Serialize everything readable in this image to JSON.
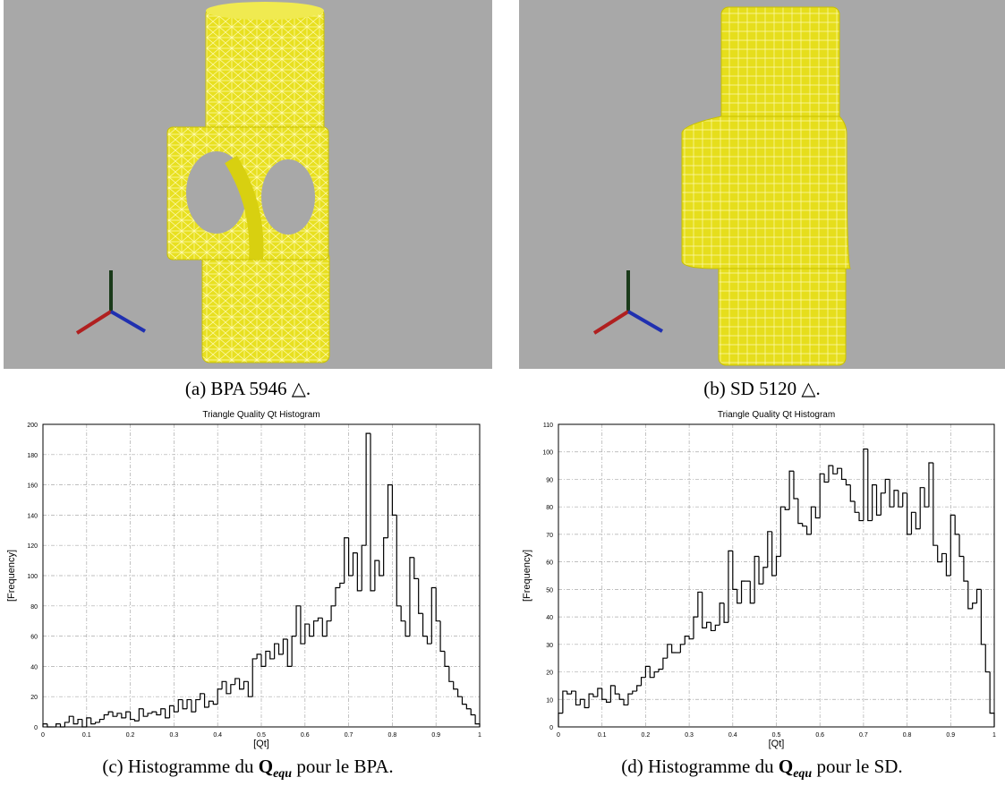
{
  "panels": [
    {
      "caption": "(a) BPA 5946 △."
    },
    {
      "caption": "(b) SD 5120 △."
    }
  ],
  "chart_data": [
    {
      "type": "histogram",
      "title": "Triangle Quality Qt Histogram",
      "xlabel": "[Qt]",
      "ylabel": "[Frequency]",
      "color": "#000000",
      "grid": true,
      "caption": {
        "label": "(c) Histogramme du",
        "symbol": "Q",
        "subscript": "equ",
        "suffix": "pour le BPA."
      },
      "bins": [
        0,
        0.01,
        0.02,
        0.03,
        0.04,
        0.05,
        0.06,
        0.07,
        0.08,
        0.09,
        0.1,
        0.11,
        0.12,
        0.13,
        0.14,
        0.15,
        0.16,
        0.17,
        0.18,
        0.19,
        0.2,
        0.21,
        0.22,
        0.23,
        0.24,
        0.25,
        0.26,
        0.27,
        0.28,
        0.29,
        0.3,
        0.31,
        0.32,
        0.33,
        0.34,
        0.35,
        0.36,
        0.37,
        0.38,
        0.39,
        0.4,
        0.41,
        0.42,
        0.43,
        0.44,
        0.45,
        0.46,
        0.47,
        0.48,
        0.49,
        0.5,
        0.51,
        0.52,
        0.53,
        0.54,
        0.55,
        0.56,
        0.57,
        0.58,
        0.59,
        0.6,
        0.61,
        0.62,
        0.63,
        0.64,
        0.65,
        0.66,
        0.67,
        0.68,
        0.69,
        0.7,
        0.71,
        0.72,
        0.73,
        0.74,
        0.75,
        0.76,
        0.77,
        0.78,
        0.79,
        0.8,
        0.81,
        0.82,
        0.83,
        0.84,
        0.85,
        0.86,
        0.87,
        0.88,
        0.89,
        0.9,
        0.91,
        0.92,
        0.93,
        0.94,
        0.95,
        0.96,
        0.97,
        0.98,
        0.99,
        1
      ],
      "counts": [
        2,
        0,
        0,
        2,
        0,
        3,
        7,
        2,
        5,
        0,
        6,
        2,
        3,
        5,
        8,
        10,
        7,
        9,
        6,
        10,
        5,
        4,
        12,
        7,
        9,
        10,
        8,
        12,
        6,
        14,
        10,
        18,
        12,
        18,
        10,
        18,
        22,
        13,
        17,
        15,
        25,
        30,
        22,
        28,
        32,
        25,
        30,
        20,
        45,
        48,
        40,
        50,
        45,
        55,
        48,
        58,
        40,
        60,
        80,
        55,
        68,
        60,
        70,
        72,
        60,
        70,
        80,
        92,
        95,
        125,
        100,
        115,
        90,
        120,
        194,
        90,
        110,
        100,
        125,
        160,
        140,
        80,
        70,
        60,
        112,
        98,
        75,
        60,
        55,
        92,
        70,
        50,
        40,
        30,
        25,
        20,
        15,
        12,
        8,
        2
      ],
      "xlim": [
        0,
        1
      ],
      "ylim": [
        0,
        200
      ],
      "xticks": [
        0,
        0.1,
        0.2,
        0.3,
        0.4,
        0.5,
        0.6,
        0.7,
        0.8,
        0.9,
        1
      ],
      "yticks": [
        0,
        20,
        40,
        60,
        80,
        100,
        120,
        140,
        160,
        180,
        200
      ]
    },
    {
      "type": "histogram",
      "title": "Triangle Quality Qt Histogram",
      "xlabel": "[Qt]",
      "ylabel": "[Frequency]",
      "color": "#000000",
      "grid": true,
      "caption": {
        "label": "(d) Histogramme du",
        "symbol": "Q",
        "subscript": "equ",
        "suffix": "pour le SD."
      },
      "bins": [
        0,
        0.01,
        0.02,
        0.03,
        0.04,
        0.05,
        0.06,
        0.07,
        0.08,
        0.09,
        0.1,
        0.11,
        0.12,
        0.13,
        0.14,
        0.15,
        0.16,
        0.17,
        0.18,
        0.19,
        0.2,
        0.21,
        0.22,
        0.23,
        0.24,
        0.25,
        0.26,
        0.27,
        0.28,
        0.29,
        0.3,
        0.31,
        0.32,
        0.33,
        0.34,
        0.35,
        0.36,
        0.37,
        0.38,
        0.39,
        0.4,
        0.41,
        0.42,
        0.43,
        0.44,
        0.45,
        0.46,
        0.47,
        0.48,
        0.49,
        0.5,
        0.51,
        0.52,
        0.53,
        0.54,
        0.55,
        0.56,
        0.57,
        0.58,
        0.59,
        0.6,
        0.61,
        0.62,
        0.63,
        0.64,
        0.65,
        0.66,
        0.67,
        0.68,
        0.69,
        0.7,
        0.71,
        0.72,
        0.73,
        0.74,
        0.75,
        0.76,
        0.77,
        0.78,
        0.79,
        0.8,
        0.81,
        0.82,
        0.83,
        0.84,
        0.85,
        0.86,
        0.87,
        0.88,
        0.89,
        0.9,
        0.91,
        0.92,
        0.93,
        0.94,
        0.95,
        0.96,
        0.97,
        0.98,
        0.99,
        1
      ],
      "counts": [
        5,
        13,
        12,
        13,
        8,
        10,
        7,
        12,
        11,
        14,
        10,
        9,
        15,
        12,
        10,
        8,
        12,
        13,
        15,
        18,
        22,
        18,
        20,
        21,
        25,
        30,
        27,
        27,
        30,
        33,
        32,
        40,
        49,
        36,
        38,
        35,
        37,
        45,
        38,
        64,
        50,
        45,
        53,
        53,
        45,
        62,
        52,
        58,
        71,
        55,
        62,
        80,
        79,
        93,
        83,
        74,
        73,
        70,
        80,
        76,
        92,
        89,
        95,
        92,
        94,
        90,
        88,
        82,
        78,
        75,
        101,
        75,
        88,
        77,
        85,
        90,
        80,
        86,
        80,
        85,
        70,
        78,
        72,
        87,
        80,
        96,
        66,
        60,
        63,
        55,
        77,
        70,
        62,
        53,
        43,
        45,
        50,
        30,
        20,
        5
      ],
      "xlim": [
        0,
        1
      ],
      "ylim": [
        0,
        110
      ],
      "xticks": [
        0,
        0.1,
        0.2,
        0.3,
        0.4,
        0.5,
        0.6,
        0.7,
        0.8,
        0.9,
        1
      ],
      "yticks": [
        0,
        10,
        20,
        30,
        40,
        50,
        60,
        70,
        80,
        90,
        100,
        110
      ]
    }
  ]
}
